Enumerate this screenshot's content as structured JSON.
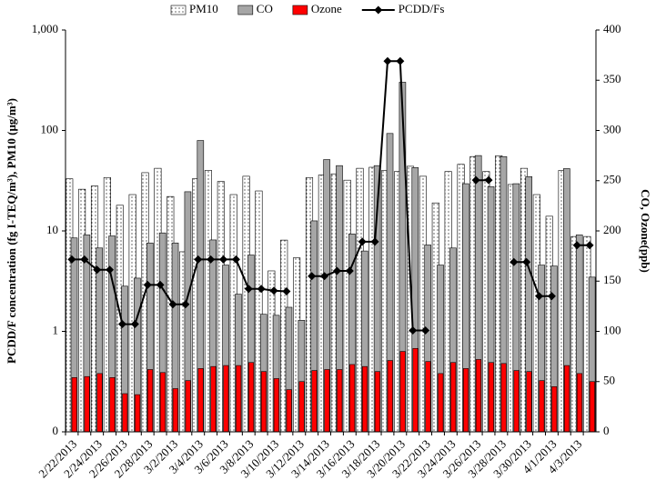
{
  "chart_data": {
    "type": "bar",
    "y_label": "PCDD/F concentration (fg I-TEQ/m³), PM10 (μg/m³)",
    "y2_label": "CO, Ozone(ppb)",
    "log_scale": true,
    "ylim": [
      0.1,
      1000
    ],
    "yticks": [
      {
        "value": 0.1,
        "label": "0"
      },
      1,
      10,
      100,
      {
        "value": 1000,
        "label": "1,000"
      }
    ],
    "y2lim": [
      0,
      400
    ],
    "y2ticks": [
      0,
      50,
      100,
      150,
      200,
      250,
      300,
      350,
      400
    ],
    "legend": "top",
    "categories": [
      "2/22/2013",
      null,
      "2/24/2013",
      null,
      "2/26/2013",
      null,
      "2/28/2013",
      null,
      "3/2/2013",
      null,
      "3/4/2013",
      null,
      "3/6/2013",
      null,
      "3/8/2013",
      null,
      "3/10/2013",
      null,
      "3/12/2013",
      null,
      "3/14/2013",
      null,
      "3/16/2013",
      null,
      "3/18/2013",
      null,
      "3/20/2013",
      null,
      "3/22/2013",
      null,
      "3/24/2013",
      null,
      "3/26/2013",
      null,
      "3/28/2013",
      null,
      "3/30/2013",
      null,
      "4/1/2013",
      null,
      "4/3/2013",
      null
    ],
    "series": [
      {
        "name": "PM10",
        "color": "#ffffff",
        "type": "bar",
        "axis": "y",
        "values": [
          33,
          26,
          28,
          34,
          18,
          23,
          38,
          42,
          22,
          6.2,
          33,
          40,
          31,
          23,
          35,
          25,
          4.0,
          8.1,
          5.4,
          34,
          36,
          37,
          32,
          42,
          43,
          40,
          39,
          44,
          35,
          19,
          39,
          46,
          55,
          39,
          56,
          29,
          42,
          23,
          14,
          40,
          8.8,
          8.8
        ]
      },
      {
        "name": "CO",
        "color": "#a6a6a6",
        "type": "bar",
        "axis": "y2",
        "values": [
          193,
          196,
          183,
          195,
          145,
          153,
          188,
          198,
          188,
          239,
          290,
          191,
          166,
          137,
          176,
          117,
          116,
          124,
          111,
          210,
          271,
          265,
          197,
          180,
          265,
          297,
          348,
          263,
          186,
          166,
          183,
          247,
          275,
          244,
          274,
          247,
          254,
          166,
          165,
          262,
          196,
          154
        ]
      },
      {
        "name": "Ozone",
        "color": "#ff0000",
        "type": "bar",
        "axis": "y2",
        "values": [
          54,
          55,
          58,
          54,
          38,
          37,
          62,
          59,
          43,
          51,
          63,
          65,
          66,
          66,
          69,
          60,
          53,
          42,
          50,
          61,
          62,
          62,
          67,
          65,
          60,
          71,
          80,
          83,
          70,
          58,
          69,
          63,
          72,
          69,
          68,
          61,
          60,
          51,
          45,
          66,
          58,
          50
        ]
      },
      {
        "name": "PCDD/Fs",
        "color": "#000000",
        "type": "line",
        "axis": "y",
        "values": [
          5.2,
          5.2,
          4.1,
          4.1,
          1.18,
          1.18,
          2.9,
          2.9,
          1.86,
          1.86,
          5.2,
          5.2,
          5.2,
          5.2,
          2.65,
          2.65,
          2.54,
          2.5,
          null,
          3.55,
          3.55,
          4.0,
          4.0,
          7.8,
          7.8,
          490,
          490,
          1.02,
          1.02,
          null,
          null,
          null,
          32,
          32,
          null,
          4.9,
          4.9,
          2.24,
          2.24,
          null,
          7.2,
          7.2
        ]
      }
    ]
  }
}
